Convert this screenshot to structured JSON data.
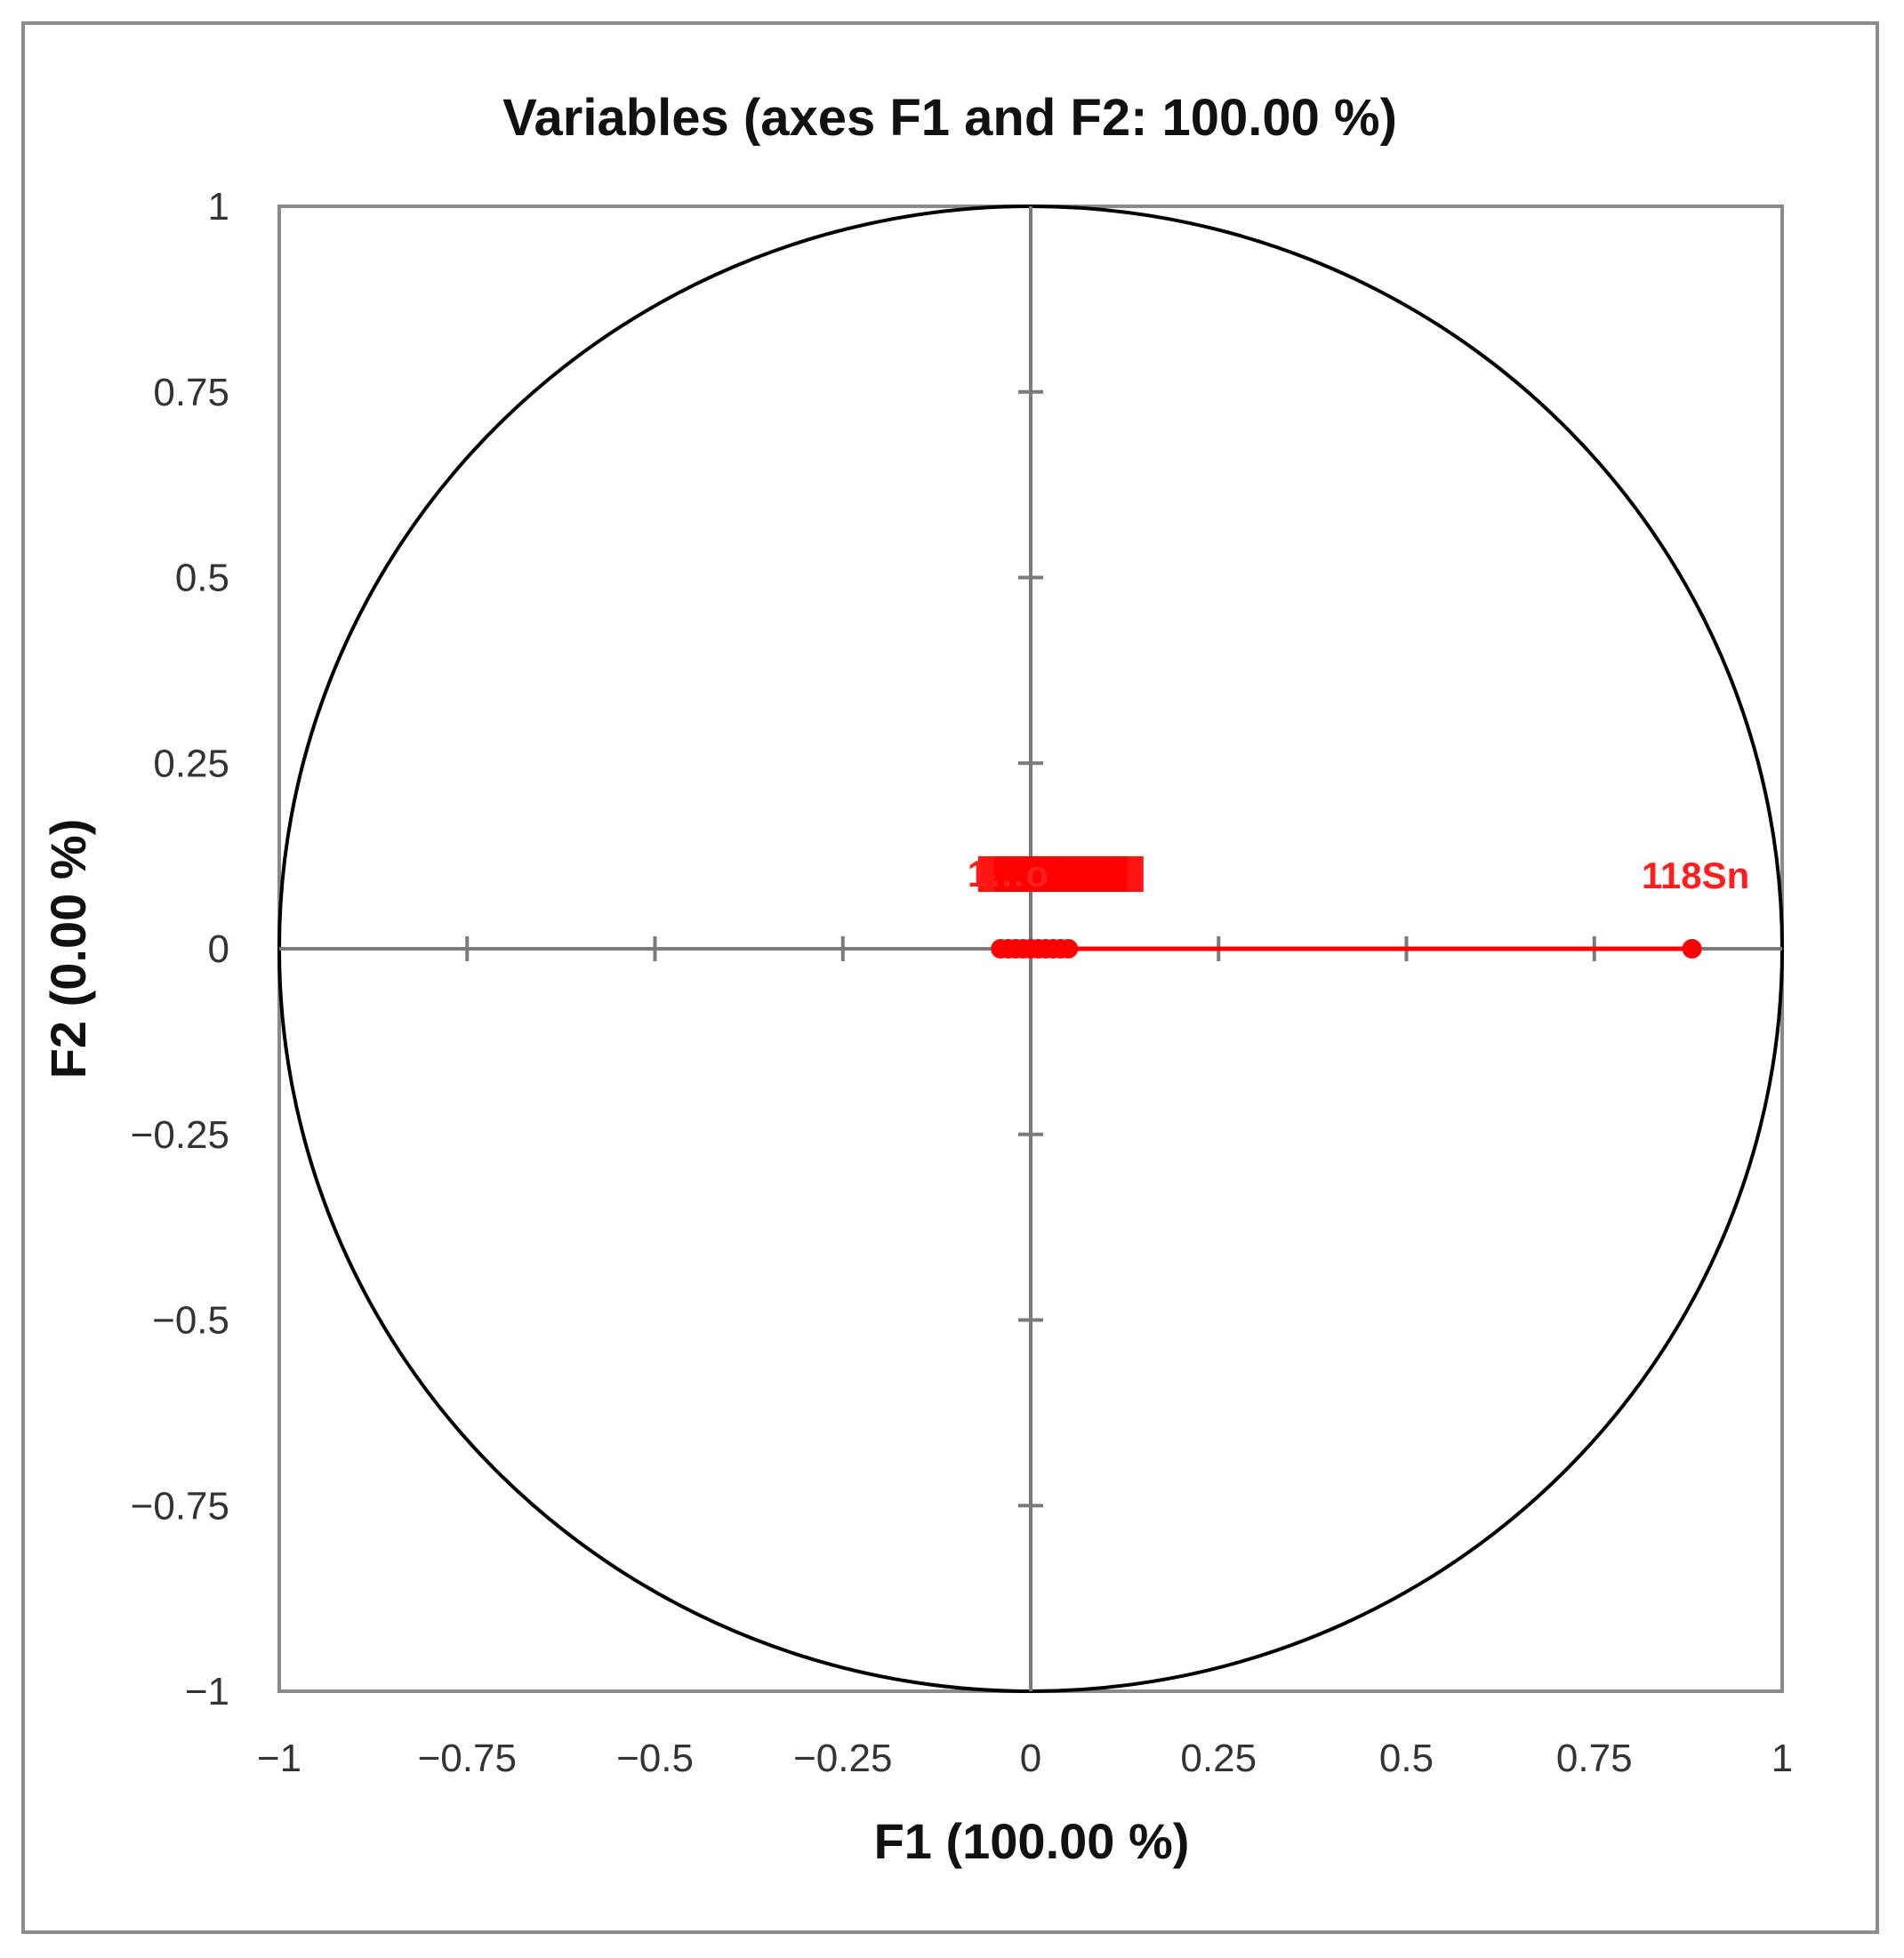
{
  "chart_data": {
    "type": "scatter",
    "title": "Variables (axes F1 and F2: 100.00 %)",
    "xlabel": "F1 (100.00 %)",
    "ylabel": "F2 (0.00 %)",
    "xlim": [
      -1,
      1
    ],
    "ylim": [
      -1,
      1
    ],
    "x_ticks": [
      "−1",
      "−0.75",
      "−0.5",
      "−0.25",
      "0",
      "0.25",
      "0.5",
      "0.75",
      "1"
    ],
    "y_ticks": [
      "1",
      "0.75",
      "0.5",
      "0.25",
      "0",
      "−0.25",
      "−0.5",
      "−0.75",
      "−1"
    ],
    "grid": false,
    "correlation_circle": true,
    "series_color": "#ff0000",
    "points": [
      {
        "label": "118Sn",
        "x": 0.88,
        "y": 0
      },
      {
        "label": "",
        "x": -0.04,
        "y": 0
      },
      {
        "label": "",
        "x": -0.03,
        "y": 0
      },
      {
        "label": "",
        "x": -0.02,
        "y": 0
      },
      {
        "label": "",
        "x": -0.01,
        "y": 0
      },
      {
        "label": "",
        "x": 0.0,
        "y": 0
      },
      {
        "label": "",
        "x": 0.01,
        "y": 0
      },
      {
        "label": "",
        "x": 0.02,
        "y": 0
      },
      {
        "label": "",
        "x": 0.03,
        "y": 0
      },
      {
        "label": "",
        "x": 0.04,
        "y": 0
      },
      {
        "label": "",
        "x": 0.05,
        "y": 0
      }
    ],
    "overlapping_labels_text": "1…o"
  }
}
